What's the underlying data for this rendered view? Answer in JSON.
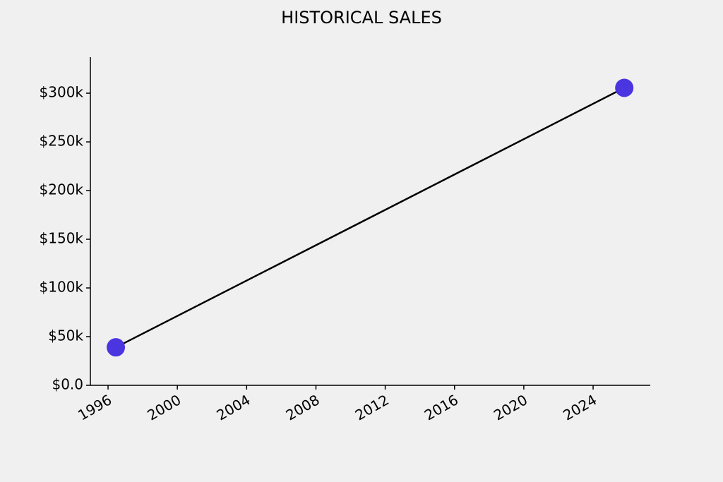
{
  "chart_data": {
    "type": "line",
    "title": "HISTORICAL SALES",
    "x": [
      1996.45,
      2025.8
    ],
    "series": [
      {
        "values": [
          39000,
          305500
        ],
        "color": "#4b35e0",
        "line_color": "#000000"
      }
    ],
    "xlim": [
      1994.98,
      2027.3
    ],
    "xticks": [
      1996,
      2000,
      2004,
      2008,
      2012,
      2016,
      2020,
      2024
    ],
    "ylim": [
      0,
      337000
    ],
    "yticks": [
      {
        "value": 0,
        "label": "$0.0"
      },
      {
        "value": 50000,
        "label": "$50k"
      },
      {
        "value": 100000,
        "label": "$100k"
      },
      {
        "value": 150000,
        "label": "$150k"
      },
      {
        "value": 200000,
        "label": "$200k"
      },
      {
        "value": 250000,
        "label": "$250k"
      },
      {
        "value": 300000,
        "label": "$300k"
      }
    ],
    "grid": false
  }
}
